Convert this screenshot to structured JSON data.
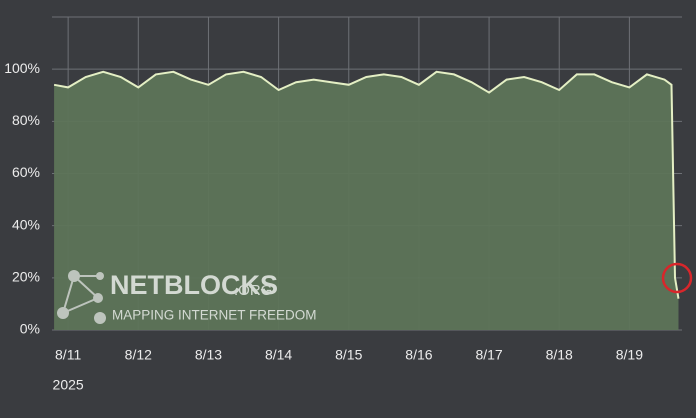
{
  "chart_data": {
    "type": "area",
    "x": [
      -0.2,
      0,
      0.25,
      0.5,
      0.75,
      1,
      1.25,
      1.5,
      1.75,
      2,
      2.25,
      2.5,
      2.75,
      3,
      3.25,
      3.5,
      3.75,
      4,
      4.25,
      4.5,
      4.75,
      5,
      5.25,
      5.5,
      5.75,
      6,
      6.25,
      6.5,
      6.75,
      7,
      7.25,
      7.5,
      7.75,
      8,
      8.25,
      8.5,
      8.6,
      8.65,
      8.7
    ],
    "series": [
      {
        "color": "#e4efc4",
        "fill": "#5d7458",
        "values": [
          94,
          93,
          97,
          99,
          97,
          93,
          98,
          99,
          96,
          94,
          98,
          99,
          97,
          92,
          95,
          96,
          95,
          94,
          97,
          98,
          97,
          94,
          99,
          98,
          95,
          91,
          96,
          97,
          95,
          92,
          98,
          98,
          95,
          93,
          98,
          96,
          94,
          20,
          12
        ]
      }
    ],
    "xlim": [
      -0.23,
      8.75
    ],
    "xticks": [
      {
        "value": 0,
        "label": "8/11"
      },
      {
        "value": 1,
        "label": "8/12"
      },
      {
        "value": 2,
        "label": "8/13"
      },
      {
        "value": 3,
        "label": "8/14"
      },
      {
        "value": 4,
        "label": "8/15"
      },
      {
        "value": 5,
        "label": "8/16"
      },
      {
        "value": 6,
        "label": "8/17"
      },
      {
        "value": 7,
        "label": "8/18"
      },
      {
        "value": 8,
        "label": "8/19"
      }
    ],
    "year_label": "2025",
    "ylim": [
      0,
      120
    ],
    "yticks": [
      {
        "value": 0,
        "label": "0%"
      },
      {
        "value": 20,
        "label": "20%"
      },
      {
        "value": 40,
        "label": "40%"
      },
      {
        "value": 60,
        "label": "60%"
      },
      {
        "value": 80,
        "label": "80%"
      },
      {
        "value": 100,
        "label": "100%"
      }
    ],
    "grid": true
  },
  "watermark": {
    "brand": "NETBLOCKS",
    "suffix": ".ORG",
    "tagline": "MAPPING INTERNET FREEDOM"
  }
}
